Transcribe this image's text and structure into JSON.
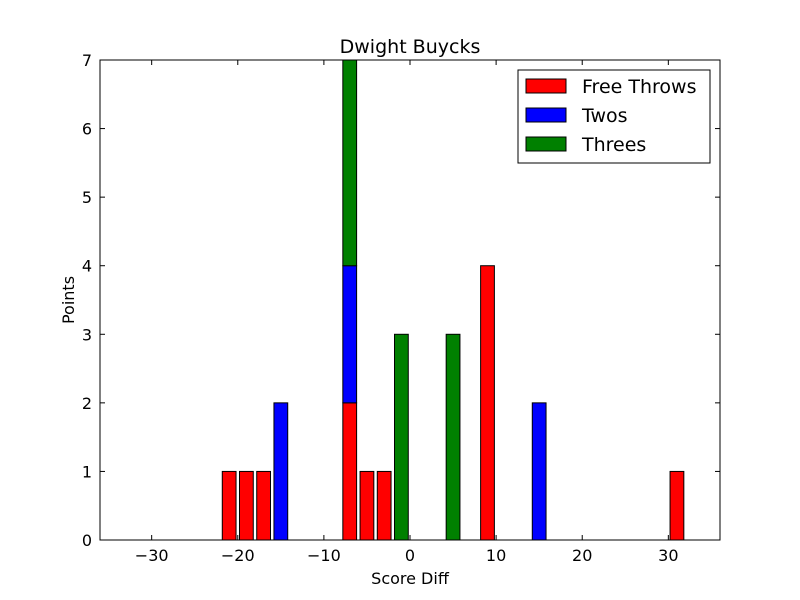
{
  "chart_data": {
    "type": "bar",
    "stacked": true,
    "title": "Dwight Buycks",
    "xlabel": "Score Diff",
    "ylabel": "Points",
    "xlim": [
      -36,
      36
    ],
    "ylim": [
      0,
      7
    ],
    "xticks": [
      -30,
      -20,
      -10,
      0,
      10,
      20,
      30
    ],
    "xtick_labels": [
      "−30",
      "−20",
      "−10",
      "0",
      "10",
      "20",
      "30"
    ],
    "yticks": [
      0,
      1,
      2,
      3,
      4,
      5,
      6,
      7
    ],
    "ytick_labels": [
      "0",
      "1",
      "2",
      "3",
      "4",
      "5",
      "6",
      "7"
    ],
    "bar_width": 1.6,
    "x": [
      -35,
      -33,
      -31,
      -29,
      -27,
      -25,
      -23,
      -21,
      -19,
      -17,
      -15,
      -13,
      -11,
      -9,
      -7,
      -5,
      -3,
      -1,
      1,
      3,
      5,
      7,
      9,
      11,
      13,
      15,
      17,
      19,
      21,
      23,
      25,
      27,
      29,
      31,
      33,
      35
    ],
    "series": [
      {
        "name": "Free Throws",
        "color": "#ff0000",
        "values": [
          0,
          0,
          0,
          0,
          0,
          0,
          0,
          1,
          1,
          1,
          0,
          0,
          0,
          0,
          2,
          1,
          1,
          0,
          0,
          0,
          0,
          0,
          4,
          0,
          0,
          0,
          0,
          0,
          0,
          0,
          0,
          0,
          0,
          1,
          0,
          0
        ]
      },
      {
        "name": "Twos",
        "color": "#0000ff",
        "values": [
          0,
          0,
          0,
          0,
          0,
          0,
          0,
          0,
          0,
          0,
          2,
          0,
          0,
          0,
          2,
          0,
          0,
          0,
          0,
          0,
          0,
          0,
          0,
          0,
          0,
          2,
          0,
          0,
          0,
          0,
          0,
          0,
          0,
          0,
          0,
          0
        ]
      },
      {
        "name": "Threes",
        "color": "#008000",
        "values": [
          0,
          0,
          0,
          0,
          0,
          0,
          0,
          0,
          0,
          0,
          0,
          0,
          0,
          0,
          3,
          0,
          0,
          3,
          0,
          0,
          3,
          0,
          0,
          0,
          0,
          0,
          0,
          0,
          0,
          0,
          0,
          0,
          0,
          0,
          0,
          0
        ]
      }
    ],
    "legend_position": "top-right",
    "grid": false
  }
}
